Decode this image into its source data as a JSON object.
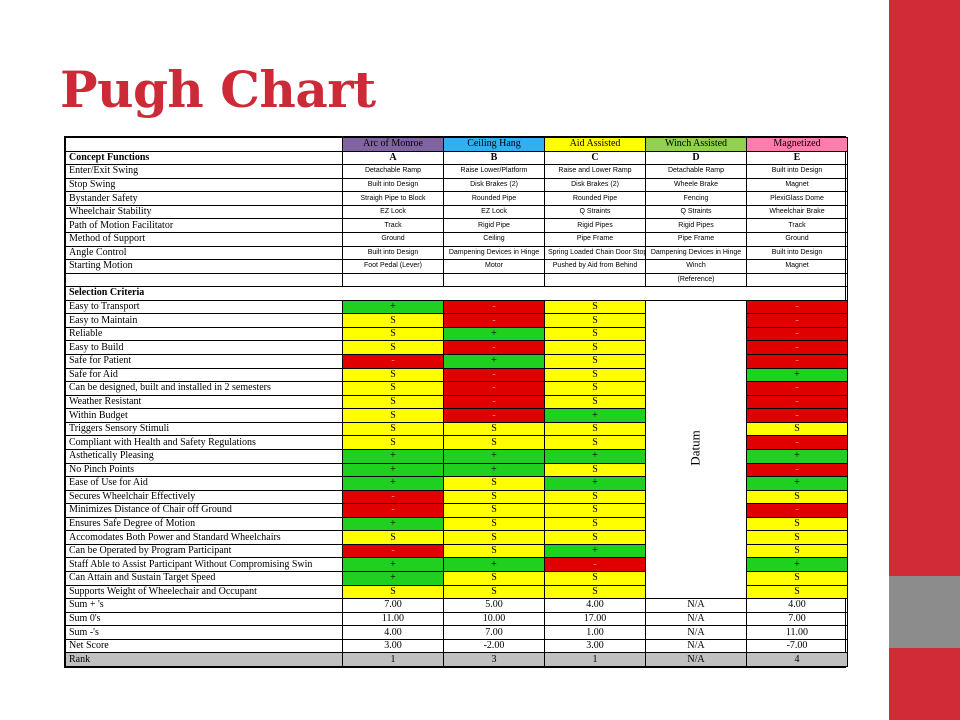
{
  "slide": {
    "title": "Pugh Chart",
    "colors": {
      "accent_red": "#d12c36",
      "side_gray": "#8c8c8c",
      "title_red": "#cc2a36"
    }
  },
  "concepts": {
    "names": [
      "Arc of Monroe",
      "Ceiling Hang",
      "Aid Assisted",
      "Winch Assisted",
      "Magnetized"
    ],
    "letters": [
      "A",
      "B",
      "C",
      "D",
      "E"
    ],
    "header_colors": [
      "#8064a2",
      "#31b0f0",
      "#ffff00",
      "#92d050",
      "#ff7dab"
    ]
  },
  "concept_functions": {
    "label": "Concept Functions",
    "rows": [
      {
        "label": "Enter/Exit Swing",
        "values": [
          "Detachable Ramp",
          "Raise Lower/Platform",
          "Raise and Lower Ramp",
          "Detachable Ramp",
          "Built into Design"
        ]
      },
      {
        "label": "Stop Swing",
        "values": [
          "Built into Design",
          "Disk Brakes (2)",
          "Disk Brakes (2)",
          "Wheele Brake",
          "Magnet"
        ]
      },
      {
        "label": "Bystander Safety",
        "values": [
          "Straigh Pipe to Block",
          "Rounded Pipe",
          "Rounded Pipe",
          "Fencing",
          "PlexiGlass Dome"
        ]
      },
      {
        "label": "Wheelchair Stability",
        "values": [
          "EZ Lock",
          "EZ Lock",
          "Q Straints",
          "Q Straints",
          "Wheelchair Brake"
        ]
      },
      {
        "label": "Path of Motion Facilitator",
        "values": [
          "Track",
          "Rigid Pipe",
          "Rigid Pipes",
          "Rigid Pipes",
          "Track"
        ]
      },
      {
        "label": "Method of Support",
        "values": [
          "Ground",
          "Ceiling",
          "Pipe Frame",
          "Pipe Frame",
          "Ground"
        ]
      },
      {
        "label": "Angle Control",
        "values": [
          "Built into Design",
          "Dampening Devices in Hinge",
          "Spring Loaded Chain Door Stop",
          "Dampening Devices in Hinge",
          "Built into Design"
        ]
      },
      {
        "label": "Starting Motion",
        "values": [
          "Foot Pedal (Lever)",
          "Motor",
          "Pushed by Aid from Behind",
          "Winch",
          "Magnet"
        ]
      }
    ],
    "reference_label": "(Reference)"
  },
  "selection_criteria": {
    "label": "Selection Criteria",
    "datum_label": "Datum",
    "rows": [
      {
        "label": "Easy to Transport",
        "scores": [
          "+",
          "-",
          "S",
          "-"
        ]
      },
      {
        "label": "Easy to Maintain",
        "scores": [
          "S",
          "-",
          "S",
          "-"
        ]
      },
      {
        "label": "Reliable",
        "scores": [
          "S",
          "+",
          "S",
          "-"
        ]
      },
      {
        "label": "Easy to Build",
        "scores": [
          "S",
          "-",
          "S",
          "-"
        ]
      },
      {
        "label": "Safe for Patient",
        "scores": [
          "-",
          "+",
          "S",
          "-"
        ]
      },
      {
        "label": "Safe for Aid",
        "scores": [
          "S",
          "-",
          "S",
          "+"
        ]
      },
      {
        "label": "Can be designed, built and installed  in 2 semesters",
        "scores": [
          "S",
          "-",
          "S",
          "-"
        ]
      },
      {
        "label": "Weather Resistant",
        "scores": [
          "S",
          "-",
          "S",
          "-"
        ]
      },
      {
        "label": "Within Budget",
        "scores": [
          "S",
          "-",
          "+",
          "-"
        ]
      },
      {
        "label": "Triggers Sensory Stimuli",
        "scores": [
          "S",
          "S",
          "S",
          "S"
        ]
      },
      {
        "label": "Compliant with Health and Safety Regulations",
        "scores": [
          "S",
          "S",
          "S",
          "-"
        ]
      },
      {
        "label": "Asthetically Pleasing",
        "scores": [
          "+",
          "+",
          "+",
          "+"
        ]
      },
      {
        "label": "No Pinch Points",
        "scores": [
          "+",
          "+",
          "S",
          "-"
        ]
      },
      {
        "label": "Ease of Use for Aid",
        "scores": [
          "+",
          "S",
          "+",
          "+"
        ]
      },
      {
        "label": "Secures Wheelchair Effectively",
        "scores": [
          "-",
          "S",
          "S",
          "S"
        ]
      },
      {
        "label": "Minimizes Distance of Chair off Ground",
        "scores": [
          "-",
          "S",
          "S",
          "-"
        ]
      },
      {
        "label": "Ensures Safe Degree of Motion",
        "scores": [
          "+",
          "S",
          "S",
          "S"
        ]
      },
      {
        "label": "Accomodates Both Power and Standard Wheelchairs",
        "scores": [
          "S",
          "S",
          "S",
          "S"
        ]
      },
      {
        "label": "Can be Operated by Program Participant",
        "scores": [
          "-",
          "S",
          "+",
          "S"
        ]
      },
      {
        "label": "Staff Able to Assist Participant Without Compromising Swin",
        "scores": [
          "+",
          "+",
          "-",
          "+"
        ]
      },
      {
        "label": "Can Attain and Sustain Target Speed",
        "scores": [
          "+",
          "S",
          "S",
          "S"
        ]
      },
      {
        "label": "Supports Weight of Wheelechair and Occupant",
        "scores": [
          "S",
          "S",
          "S",
          "S"
        ]
      }
    ]
  },
  "summary": {
    "rows": [
      {
        "label": "Sum + 's",
        "values": [
          "7.00",
          "5.00",
          "4.00",
          "N/A",
          "4.00"
        ]
      },
      {
        "label": "Sum 0's",
        "values": [
          "11.00",
          "10.00",
          "17.00",
          "N/A",
          "7.00"
        ]
      },
      {
        "label": "Sum -'s",
        "values": [
          "4.00",
          "7.00",
          "1.00",
          "N/A",
          "11.00"
        ]
      },
      {
        "label": "Net Score",
        "values": [
          "3.00",
          "-2.00",
          "3.00",
          "N/A",
          "-7.00"
        ]
      },
      {
        "label": "Rank",
        "values": [
          "1",
          "3",
          "1",
          "N/A",
          "4"
        ]
      }
    ]
  },
  "score_colors": {
    "+": "#20d020",
    "S": "#ffff00",
    "-": "#e00000"
  }
}
